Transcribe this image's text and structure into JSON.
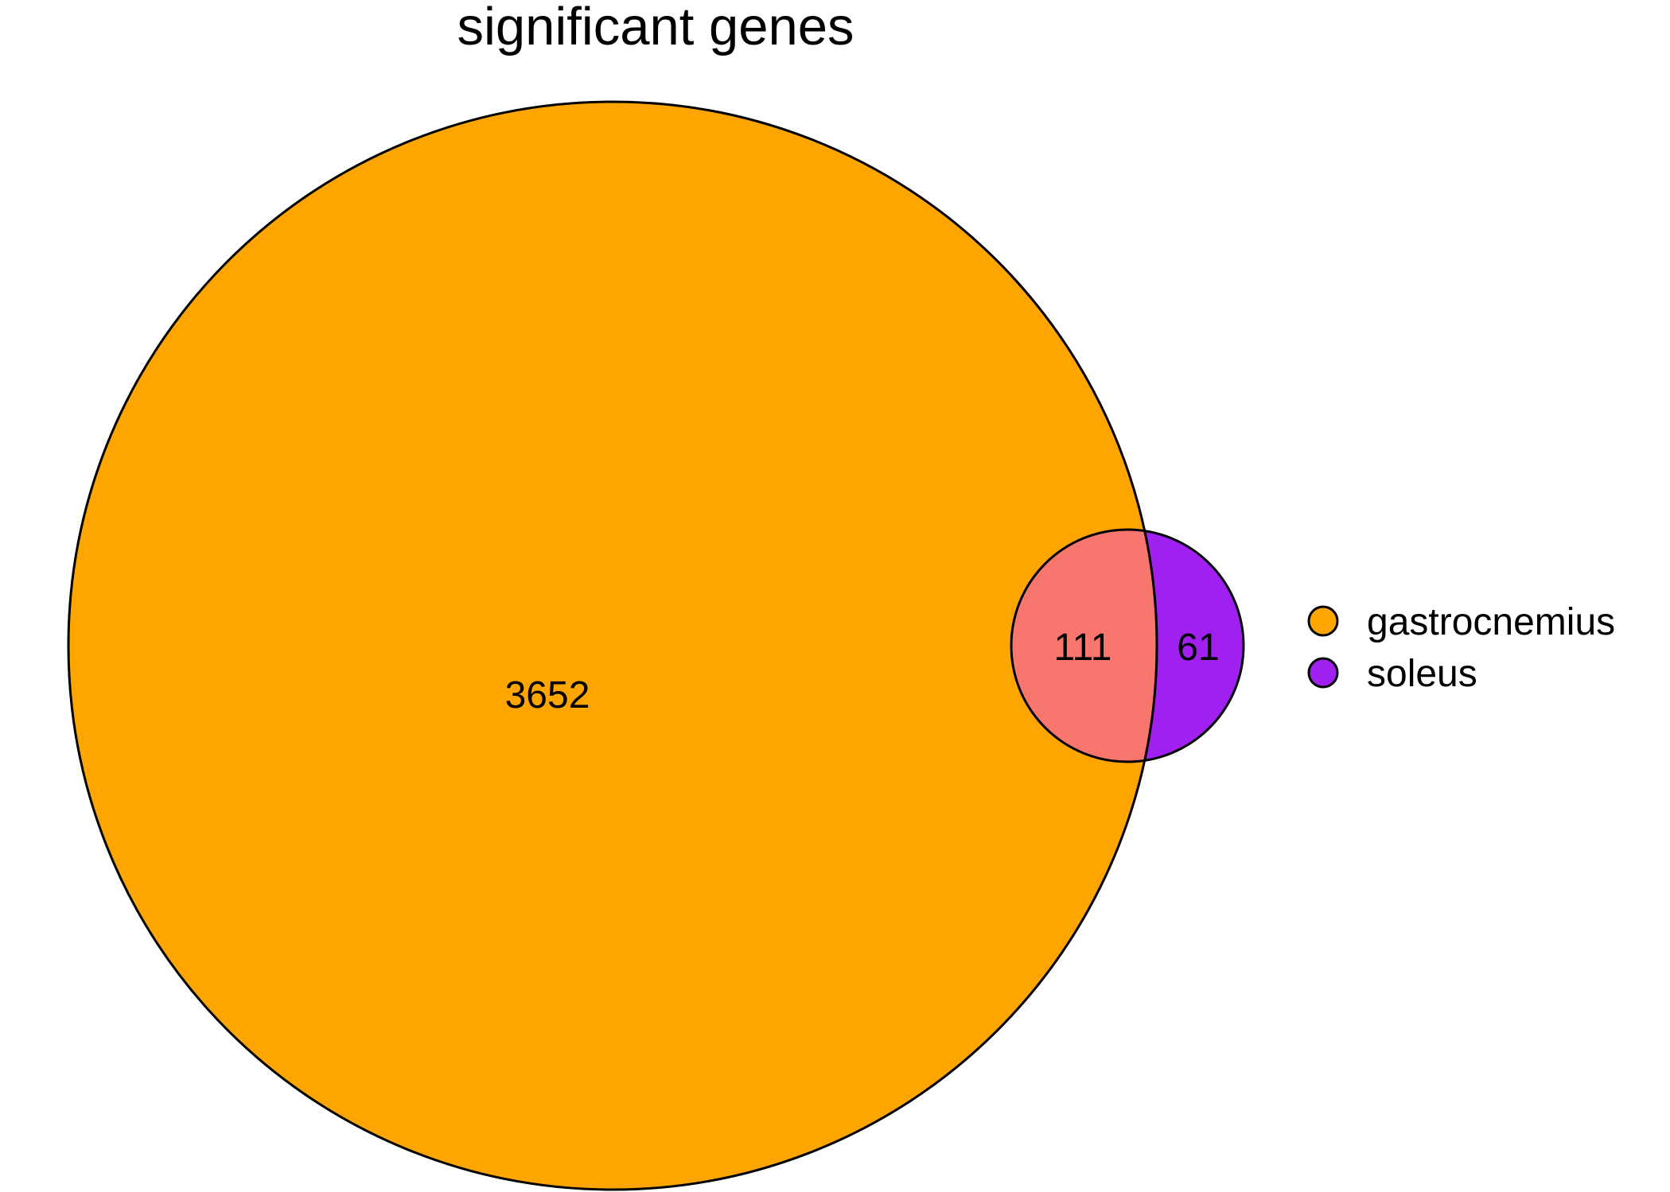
{
  "title": "significant genes",
  "sets": [
    {
      "name": "gastrocnemius",
      "color": "#FFA500"
    },
    {
      "name": "soleus",
      "color": "#A020F0"
    }
  ],
  "regions": {
    "gastrocnemius_only": "3652",
    "intersection": "111",
    "soleus_only": "61"
  },
  "intersection_color": "#F8766D",
  "chart_data": {
    "type": "venn",
    "title": "significant genes",
    "sets": [
      "gastrocnemius",
      "soleus"
    ],
    "values": {
      "gastrocnemius_only": 3652,
      "gastrocnemius&soleus": 111,
      "soleus_only": 61
    },
    "legend_position": "right"
  }
}
